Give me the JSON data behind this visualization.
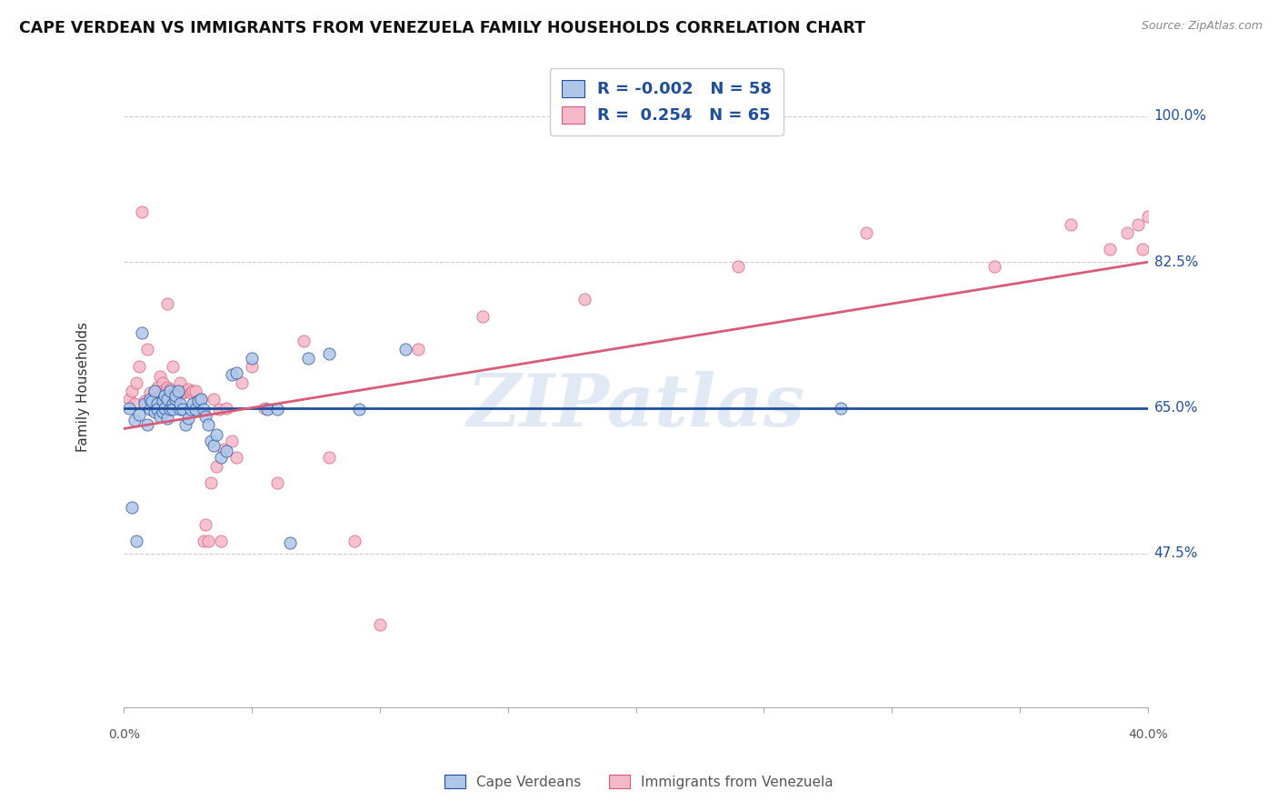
{
  "title": "CAPE VERDEAN VS IMMIGRANTS FROM VENEZUELA FAMILY HOUSEHOLDS CORRELATION CHART",
  "source": "Source: ZipAtlas.com",
  "ylabel": "Family Households",
  "yticks": [
    0.475,
    0.65,
    0.825,
    1.0
  ],
  "ytick_labels": [
    "47.5%",
    "65.0%",
    "82.5%",
    "100.0%"
  ],
  "xlim": [
    0.0,
    0.4
  ],
  "ylim": [
    0.29,
    1.06
  ],
  "blue_R": "-0.002",
  "blue_N": "58",
  "pink_R": "0.254",
  "pink_N": "65",
  "blue_color": "#aec6e8",
  "pink_color": "#f5b8c8",
  "blue_line_color": "#1f4e9c",
  "pink_line_color": "#d95b7a",
  "watermark": "ZIPatlas",
  "legend_labels": [
    "Cape Verdeans",
    "Immigrants from Venezuela"
  ],
  "blue_line_y0": 0.65,
  "blue_line_y1": 0.65,
  "pink_line_y0": 0.625,
  "pink_line_y1": 0.825,
  "blue_scatter_x": [
    0.002,
    0.003,
    0.004,
    0.005,
    0.006,
    0.007,
    0.008,
    0.009,
    0.01,
    0.01,
    0.011,
    0.012,
    0.012,
    0.013,
    0.013,
    0.014,
    0.015,
    0.015,
    0.016,
    0.016,
    0.017,
    0.017,
    0.018,
    0.018,
    0.019,
    0.019,
    0.02,
    0.02,
    0.021,
    0.022,
    0.022,
    0.023,
    0.024,
    0.025,
    0.026,
    0.027,
    0.028,
    0.029,
    0.03,
    0.031,
    0.032,
    0.033,
    0.034,
    0.035,
    0.036,
    0.038,
    0.04,
    0.042,
    0.044,
    0.05,
    0.056,
    0.06,
    0.065,
    0.072,
    0.08,
    0.092,
    0.11,
    0.28
  ],
  "blue_scatter_y": [
    0.65,
    0.53,
    0.635,
    0.49,
    0.642,
    0.74,
    0.655,
    0.63,
    0.66,
    0.648,
    0.658,
    0.67,
    0.645,
    0.655,
    0.648,
    0.64,
    0.658,
    0.645,
    0.665,
    0.65,
    0.66,
    0.638,
    0.648,
    0.67,
    0.655,
    0.648,
    0.66,
    0.665,
    0.67,
    0.648,
    0.655,
    0.648,
    0.63,
    0.638,
    0.648,
    0.655,
    0.648,
    0.658,
    0.66,
    0.648,
    0.64,
    0.63,
    0.61,
    0.605,
    0.618,
    0.59,
    0.598,
    0.69,
    0.692,
    0.71,
    0.648,
    0.648,
    0.488,
    0.71,
    0.715,
    0.648,
    0.72,
    0.65
  ],
  "pink_scatter_x": [
    0.002,
    0.003,
    0.004,
    0.005,
    0.006,
    0.007,
    0.008,
    0.009,
    0.01,
    0.011,
    0.012,
    0.012,
    0.013,
    0.014,
    0.015,
    0.015,
    0.016,
    0.017,
    0.017,
    0.018,
    0.018,
    0.019,
    0.02,
    0.021,
    0.022,
    0.023,
    0.024,
    0.025,
    0.026,
    0.027,
    0.028,
    0.029,
    0.03,
    0.031,
    0.032,
    0.033,
    0.034,
    0.035,
    0.036,
    0.037,
    0.038,
    0.039,
    0.04,
    0.042,
    0.044,
    0.046,
    0.05,
    0.055,
    0.06,
    0.07,
    0.08,
    0.09,
    0.1,
    0.115,
    0.14,
    0.18,
    0.24,
    0.29,
    0.34,
    0.37,
    0.385,
    0.392,
    0.396,
    0.398,
    0.4
  ],
  "pink_scatter_y": [
    0.66,
    0.67,
    0.655,
    0.68,
    0.7,
    0.885,
    0.658,
    0.72,
    0.668,
    0.658,
    0.668,
    0.66,
    0.675,
    0.688,
    0.68,
    0.67,
    0.668,
    0.775,
    0.675,
    0.672,
    0.665,
    0.7,
    0.668,
    0.668,
    0.68,
    0.668,
    0.67,
    0.672,
    0.668,
    0.67,
    0.67,
    0.658,
    0.66,
    0.49,
    0.51,
    0.49,
    0.56,
    0.66,
    0.58,
    0.648,
    0.49,
    0.6,
    0.65,
    0.61,
    0.59,
    0.68,
    0.7,
    0.65,
    0.56,
    0.73,
    0.59,
    0.49,
    0.39,
    0.72,
    0.76,
    0.78,
    0.82,
    0.86,
    0.82,
    0.87,
    0.84,
    0.86,
    0.87,
    0.84,
    0.88
  ]
}
